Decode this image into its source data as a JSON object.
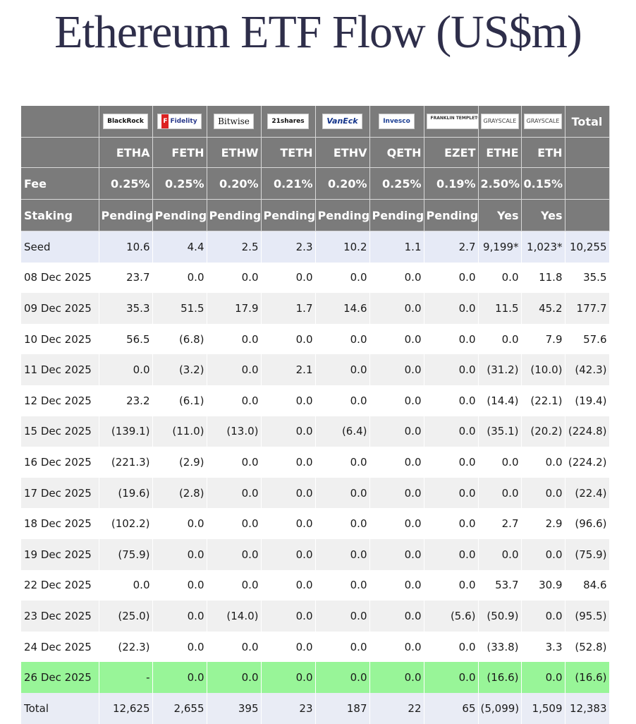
{
  "title": "Ethereum ETF Flow (US$m)",
  "issuers": [
    {
      "name": "BlackRock",
      "icon": "blackrock-logo"
    },
    {
      "name": "Fidelity",
      "icon": "fidelity-logo"
    },
    {
      "name": "Bitwise",
      "icon": "bitwise-logo"
    },
    {
      "name": "21shares",
      "icon": "21shares-logo"
    },
    {
      "name": "VanEck",
      "icon": "vaneck-logo"
    },
    {
      "name": "Invesco",
      "icon": "invesco-logo"
    },
    {
      "name": "FRANKLIN TEMPLETON",
      "icon": "franklin-templeton-logo"
    },
    {
      "name": "GRAYSCALE",
      "icon": "grayscale-logo"
    },
    {
      "name": "GRAYSCALE",
      "icon": "grayscale-logo"
    }
  ],
  "total_header": "Total",
  "tickers": [
    "ETHA",
    "FETH",
    "ETHW",
    "TETH",
    "ETHV",
    "QETH",
    "EZET",
    "ETHE",
    "ETH"
  ],
  "fee": {
    "label": "Fee",
    "values": [
      "0.25%",
      "0.25%",
      "0.20%",
      "0.21%",
      "0.20%",
      "0.25%",
      "0.19%",
      "2.50%",
      "0.15%"
    ]
  },
  "staking": {
    "label": "Staking",
    "values": [
      "Pending",
      "Pending",
      "Pending",
      "Pending",
      "Pending",
      "Pending",
      "Pending",
      "Yes",
      "Yes"
    ]
  },
  "rows": [
    {
      "date": "Seed",
      "values": [
        "10.6",
        "4.4",
        "2.5",
        "2.3",
        "10.2",
        "1.1",
        "2.7",
        "9,199*",
        "1,023*"
      ],
      "total": "10,255"
    },
    {
      "date": "08 Dec 2025",
      "values": [
        "23.7",
        "0.0",
        "0.0",
        "0.0",
        "0.0",
        "0.0",
        "0.0",
        "0.0",
        "11.8"
      ],
      "total": "35.5"
    },
    {
      "date": "09 Dec 2025",
      "values": [
        "35.3",
        "51.5",
        "17.9",
        "1.7",
        "14.6",
        "0.0",
        "0.0",
        "11.5",
        "45.2"
      ],
      "total": "177.7"
    },
    {
      "date": "10 Dec 2025",
      "values": [
        "56.5",
        "(6.8)",
        "0.0",
        "0.0",
        "0.0",
        "0.0",
        "0.0",
        "0.0",
        "7.9"
      ],
      "total": "57.6"
    },
    {
      "date": "11 Dec 2025",
      "values": [
        "0.0",
        "(3.2)",
        "0.0",
        "2.1",
        "0.0",
        "0.0",
        "0.0",
        "(31.2)",
        "(10.0)"
      ],
      "total": "(42.3)"
    },
    {
      "date": "12 Dec 2025",
      "values": [
        "23.2",
        "(6.1)",
        "0.0",
        "0.0",
        "0.0",
        "0.0",
        "0.0",
        "(14.4)",
        "(22.1)"
      ],
      "total": "(19.4)"
    },
    {
      "date": "15 Dec 2025",
      "values": [
        "(139.1)",
        "(11.0)",
        "(13.0)",
        "0.0",
        "(6.4)",
        "0.0",
        "0.0",
        "(35.1)",
        "(20.2)"
      ],
      "total": "(224.8)"
    },
    {
      "date": "16 Dec 2025",
      "values": [
        "(221.3)",
        "(2.9)",
        "0.0",
        "0.0",
        "0.0",
        "0.0",
        "0.0",
        "0.0",
        "0.0"
      ],
      "total": "(224.2)"
    },
    {
      "date": "17 Dec 2025",
      "values": [
        "(19.6)",
        "(2.8)",
        "0.0",
        "0.0",
        "0.0",
        "0.0",
        "0.0",
        "0.0",
        "0.0"
      ],
      "total": "(22.4)"
    },
    {
      "date": "18 Dec 2025",
      "values": [
        "(102.2)",
        "0.0",
        "0.0",
        "0.0",
        "0.0",
        "0.0",
        "0.0",
        "2.7",
        "2.9"
      ],
      "total": "(96.6)"
    },
    {
      "date": "19 Dec 2025",
      "values": [
        "(75.9)",
        "0.0",
        "0.0",
        "0.0",
        "0.0",
        "0.0",
        "0.0",
        "0.0",
        "0.0"
      ],
      "total": "(75.9)"
    },
    {
      "date": "22 Dec 2025",
      "values": [
        "0.0",
        "0.0",
        "0.0",
        "0.0",
        "0.0",
        "0.0",
        "0.0",
        "53.7",
        "30.9"
      ],
      "total": "84.6"
    },
    {
      "date": "23 Dec 2025",
      "values": [
        "(25.0)",
        "0.0",
        "(14.0)",
        "0.0",
        "0.0",
        "0.0",
        "(5.6)",
        "(50.9)",
        "0.0"
      ],
      "total": "(95.5)"
    },
    {
      "date": "24 Dec 2025",
      "values": [
        "(22.3)",
        "0.0",
        "0.0",
        "0.0",
        "0.0",
        "0.0",
        "0.0",
        "(33.8)",
        "3.3"
      ],
      "total": "(52.8)"
    },
    {
      "date": "26 Dec 2025",
      "values": [
        "-",
        "0.0",
        "0.0",
        "0.0",
        "0.0",
        "0.0",
        "0.0",
        "(16.6)",
        "0.0"
      ],
      "total": "(16.6)",
      "highlight": true
    }
  ],
  "totals": {
    "label": "Total",
    "values": [
      "12,625",
      "2,655",
      "395",
      "23",
      "187",
      "22",
      "65",
      "(5,099)",
      "1,509"
    ],
    "total": "12,383"
  },
  "colors": {
    "header_bg": "#7b7b7b",
    "negative": "#e01818",
    "highlight_row": "#98f598",
    "seed_row": "#e6eaf6",
    "striped_row": "#f0f0f0"
  }
}
